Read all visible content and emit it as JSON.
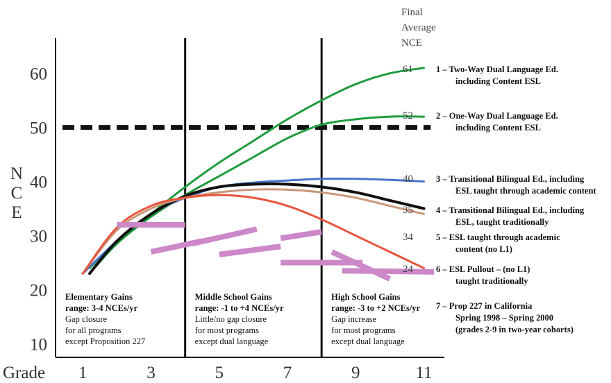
{
  "chart_data": {
    "type": "line",
    "ylabel": "NCE",
    "xlabel": "Grade",
    "xlim": [
      0.2,
      11.6
    ],
    "ylim": [
      7.5,
      66.5
    ],
    "x_ticks": [
      "1",
      "3",
      "5",
      "7",
      "9",
      "11"
    ],
    "x_tick_values": [
      1,
      3,
      5,
      7,
      9,
      11
    ],
    "y_ticks": [
      "60",
      "50",
      "40",
      "30",
      "20",
      "10"
    ],
    "y_tick_values": [
      60,
      50,
      40,
      30,
      20,
      10
    ],
    "reference_line": {
      "y": 50,
      "style": "dashed",
      "color": "#111111"
    },
    "stage_dividers": [
      4,
      8
    ],
    "final_header": [
      "Final",
      "Average",
      "NCE"
    ],
    "series": [
      {
        "id": "s1",
        "color": "#1e9b3c",
        "final": "61",
        "label": [
          "1 – Two-Way Dual Language Ed.",
          "including Content ESL"
        ],
        "x": [
          1.2,
          2,
          3,
          4,
          5,
          6,
          7,
          8,
          9,
          10,
          11
        ],
        "y": [
          24,
          29,
          34,
          39,
          43.5,
          47.5,
          51.5,
          55,
          58,
          60,
          61
        ]
      },
      {
        "id": "s2",
        "color": "#1e9b3c",
        "final": "52",
        "label": [
          "2 – One-Way Dual Language Ed.",
          "including Content ESL"
        ],
        "x": [
          1.2,
          2,
          3,
          4,
          5,
          6,
          7,
          8,
          9,
          10,
          11
        ],
        "y": [
          23,
          28.5,
          33.5,
          37.5,
          41,
          44.5,
          48,
          50.5,
          51.5,
          52,
          52
        ]
      },
      {
        "id": "s3",
        "color": "#4a74c9",
        "final": "40",
        "label": [
          "3 – Transitional Bilingual Ed., including",
          "ESL taught through academic content"
        ],
        "x": [
          1,
          2,
          3,
          4,
          5,
          6,
          7,
          8,
          9,
          10,
          11
        ],
        "y": [
          23,
          29,
          34,
          37,
          39,
          39.8,
          40.2,
          40.5,
          40.5,
          40.3,
          40
        ]
      },
      {
        "id": "s4",
        "color": "#111111",
        "final": "35",
        "label": [
          "4 – Transitional Bilingual Ed., including",
          "ESL, taught traditionally"
        ],
        "x": [
          1.2,
          2,
          3,
          4,
          5,
          6,
          7,
          8,
          9,
          10,
          11
        ],
        "y": [
          23,
          29,
          34,
          37.3,
          39,
          39.5,
          39.5,
          39,
          38,
          36.5,
          35
        ]
      },
      {
        "id": "s5",
        "color": "#c8987a",
        "final": "34",
        "label": [
          "5 – ESL taught through academic",
          "content (no L1)"
        ],
        "x": [
          1,
          2,
          3,
          4,
          5,
          6,
          7,
          8,
          9,
          10,
          11
        ],
        "y": [
          23,
          31,
          35,
          37,
          38,
          38.5,
          38.5,
          38,
          37,
          35.5,
          34
        ]
      },
      {
        "id": "s6",
        "color": "#e8553c",
        "final": "24",
        "label": [
          "6 – ESL Pullout – (no L1)",
          "taught traditionally"
        ],
        "x": [
          1,
          2,
          3,
          4,
          5,
          6,
          7,
          8,
          9,
          10,
          11
        ],
        "y": [
          23,
          31.5,
          35.5,
          37,
          37.5,
          37,
          35.5,
          33,
          30,
          27,
          24
        ]
      }
    ],
    "prop227": {
      "color": "#cc88c8",
      "label": [
        "7 – Prop 227 in California",
        "Spring 1998 – Spring 2000",
        "(grades 2-9 in two-year cohorts)"
      ],
      "segments": [
        {
          "x": [
            2,
            4
          ],
          "y": [
            32,
            32
          ]
        },
        {
          "x": [
            3,
            4.5
          ],
          "y": [
            27,
            29
          ]
        },
        {
          "x": [
            4.2,
            6.1
          ],
          "y": [
            28.5,
            31.2
          ]
        },
        {
          "x": [
            5,
            6.8
          ],
          "y": [
            26.5,
            28
          ]
        },
        {
          "x": [
            6.8,
            8
          ],
          "y": [
            29.5,
            30.7
          ]
        },
        {
          "x": [
            6.8,
            9.2
          ],
          "y": [
            25,
            25
          ]
        },
        {
          "x": [
            8.3,
            10
          ],
          "y": [
            27,
            22
          ]
        },
        {
          "x": [
            8.6,
            11.3
          ],
          "y": [
            23.5,
            23.3
          ]
        }
      ]
    },
    "annotations": [
      {
        "x": 1,
        "title": [
          "Elementary Gains",
          "range: 3-4 NCEs/yr"
        ],
        "text": [
          "Gap closure",
          "for all programs",
          "except Proposition 227"
        ]
      },
      {
        "x": 5,
        "title": [
          "Middle School Gains",
          "range: -1 to +4 NCEs/yr"
        ],
        "text": [
          "Little/no gap closure",
          "for most programs",
          "except dual language"
        ]
      },
      {
        "x": 9,
        "title": [
          "High School Gains",
          "range: -3 to +2 NCEs/yr"
        ],
        "text": [
          "Gap increase",
          "for most programs",
          "except dual language"
        ]
      }
    ]
  }
}
